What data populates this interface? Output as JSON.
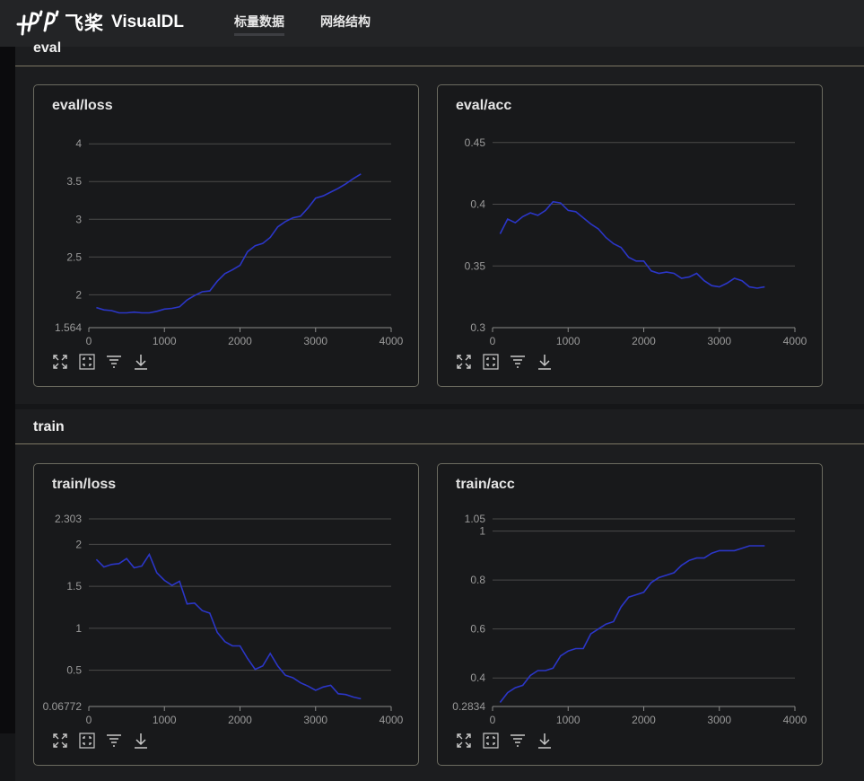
{
  "app": {
    "logo_cn": "飞桨",
    "logo_en": "VisualDL"
  },
  "nav": {
    "tabs": [
      {
        "label": "标量数据",
        "active": true
      },
      {
        "label": "网络结构",
        "active": false
      }
    ]
  },
  "sections": [
    {
      "title": "eval"
    },
    {
      "title": "train"
    }
  ],
  "colors": {
    "series": "#2b36c8",
    "grid": "#4a4a4a",
    "axis": "#8a8a8a",
    "tick_text": "#9a9a9a"
  },
  "toolbar_icons": [
    "expand-icon",
    "restore-icon",
    "filter-icon",
    "download-icon"
  ],
  "chart_data": [
    {
      "type": "line",
      "title": "eval/loss",
      "xlabel": "",
      "ylabel": "",
      "xlim": [
        0,
        4000
      ],
      "ylim": [
        1.564,
        4.05
      ],
      "x_ticks": [
        "0",
        "1000",
        "2000",
        "3000",
        "4000"
      ],
      "x_tick_values": [
        0,
        1000,
        2000,
        3000,
        4000
      ],
      "y_ticks": [
        "1.564",
        "2",
        "2.5",
        "3",
        "3.5",
        "4"
      ],
      "y_tick_values": [
        1.564,
        2,
        2.5,
        3,
        3.5,
        4
      ],
      "grid": true,
      "legend": "none",
      "series": [
        {
          "x": [
            100,
            200,
            300,
            400,
            500,
            600,
            700,
            800,
            900,
            1000,
            1100,
            1200,
            1300,
            1400,
            1500,
            1600,
            1700,
            1800,
            1900,
            2000,
            2100,
            2200,
            2300,
            2400,
            2500,
            2600,
            2700,
            2800,
            2900,
            3000,
            3100,
            3200,
            3300,
            3400,
            3500,
            3600
          ],
          "y": [
            1.83,
            1.8,
            1.79,
            1.76,
            1.76,
            1.77,
            1.76,
            1.76,
            1.78,
            1.81,
            1.82,
            1.84,
            1.93,
            1.99,
            2.04,
            2.05,
            2.18,
            2.28,
            2.33,
            2.39,
            2.57,
            2.65,
            2.68,
            2.76,
            2.9,
            2.97,
            3.02,
            3.04,
            3.15,
            3.28,
            3.31,
            3.36,
            3.41,
            3.47,
            3.54,
            3.6
          ]
        }
      ]
    },
    {
      "type": "line",
      "title": "eval/acc",
      "xlabel": "",
      "ylabel": "",
      "xlim": [
        0,
        4000
      ],
      "ylim": [
        0.3,
        0.452
      ],
      "x_ticks": [
        "0",
        "1000",
        "2000",
        "3000",
        "4000"
      ],
      "x_tick_values": [
        0,
        1000,
        2000,
        3000,
        4000
      ],
      "y_ticks": [
        "0.3",
        "0.35",
        "0.4",
        "0.45"
      ],
      "y_tick_values": [
        0.3,
        0.35,
        0.4,
        0.45
      ],
      "grid": true,
      "legend": "none",
      "series": [
        {
          "x": [
            100,
            200,
            300,
            400,
            500,
            600,
            700,
            800,
            900,
            1000,
            1100,
            1200,
            1300,
            1400,
            1500,
            1600,
            1700,
            1800,
            1900,
            2000,
            2100,
            2200,
            2300,
            2400,
            2500,
            2600,
            2700,
            2800,
            2900,
            3000,
            3100,
            3200,
            3300,
            3400,
            3500,
            3600
          ],
          "y": [
            0.376,
            0.388,
            0.385,
            0.39,
            0.393,
            0.391,
            0.395,
            0.402,
            0.401,
            0.395,
            0.394,
            0.389,
            0.384,
            0.38,
            0.373,
            0.368,
            0.365,
            0.357,
            0.354,
            0.354,
            0.346,
            0.344,
            0.345,
            0.344,
            0.34,
            0.341,
            0.344,
            0.338,
            0.334,
            0.333,
            0.336,
            0.34,
            0.338,
            0.333,
            0.332,
            0.333
          ]
        }
      ]
    },
    {
      "type": "line",
      "title": "train/loss",
      "xlabel": "",
      "ylabel": "",
      "xlim": [
        0,
        4000
      ],
      "ylim": [
        0.06772,
        2.303
      ],
      "x_ticks": [
        "0",
        "1000",
        "2000",
        "3000",
        "4000"
      ],
      "x_tick_values": [
        0,
        1000,
        2000,
        3000,
        4000
      ],
      "y_ticks": [
        "0.06772",
        "0.5",
        "1",
        "1.5",
        "2",
        "2.303"
      ],
      "y_tick_values": [
        0.06772,
        0.5,
        1,
        1.5,
        2,
        2.303
      ],
      "grid": true,
      "legend": "none",
      "series": [
        {
          "x": [
            100,
            200,
            300,
            400,
            500,
            600,
            700,
            800,
            900,
            1000,
            1100,
            1200,
            1300,
            1400,
            1500,
            1600,
            1700,
            1800,
            1900,
            2000,
            2100,
            2200,
            2300,
            2400,
            2500,
            2600,
            2700,
            2800,
            2900,
            3000,
            3100,
            3200,
            3300,
            3400,
            3500,
            3600
          ],
          "y": [
            1.82,
            1.73,
            1.76,
            1.77,
            1.83,
            1.72,
            1.74,
            1.88,
            1.66,
            1.57,
            1.51,
            1.56,
            1.29,
            1.3,
            1.21,
            1.18,
            0.95,
            0.84,
            0.79,
            0.79,
            0.64,
            0.51,
            0.55,
            0.7,
            0.55,
            0.44,
            0.41,
            0.35,
            0.31,
            0.26,
            0.3,
            0.32,
            0.22,
            0.21,
            0.18,
            0.16
          ]
        }
      ]
    },
    {
      "type": "line",
      "title": "train/acc",
      "xlabel": "",
      "ylabel": "",
      "xlim": [
        0,
        4000
      ],
      "ylim": [
        0.2834,
        1.05
      ],
      "x_ticks": [
        "0",
        "1000",
        "2000",
        "3000",
        "4000"
      ],
      "x_tick_values": [
        0,
        1000,
        2000,
        3000,
        4000
      ],
      "y_ticks": [
        "0.2834",
        "0.4",
        "0.6",
        "0.8",
        "1",
        "1.05"
      ],
      "y_tick_values": [
        0.2834,
        0.4,
        0.6,
        0.8,
        1,
        1.05
      ],
      "grid": true,
      "legend": "none",
      "series": [
        {
          "x": [
            100,
            200,
            300,
            400,
            500,
            600,
            700,
            800,
            900,
            1000,
            1100,
            1200,
            1300,
            1400,
            1500,
            1600,
            1700,
            1800,
            1900,
            2000,
            2100,
            2200,
            2300,
            2400,
            2500,
            2600,
            2700,
            2800,
            2900,
            3000,
            3100,
            3200,
            3300,
            3400,
            3500,
            3600
          ],
          "y": [
            0.3,
            0.34,
            0.36,
            0.37,
            0.41,
            0.43,
            0.43,
            0.44,
            0.49,
            0.51,
            0.52,
            0.52,
            0.58,
            0.6,
            0.62,
            0.63,
            0.69,
            0.73,
            0.74,
            0.75,
            0.79,
            0.81,
            0.82,
            0.83,
            0.86,
            0.88,
            0.89,
            0.89,
            0.91,
            0.92,
            0.92,
            0.92,
            0.93,
            0.94,
            0.94,
            0.94
          ]
        }
      ]
    }
  ]
}
